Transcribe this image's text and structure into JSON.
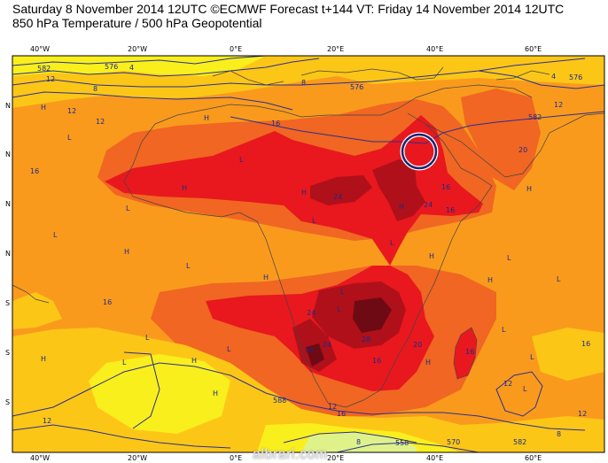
{
  "header": {
    "line1": "Saturday 8 November 2014 12UTC ©ECMWF Forecast t+144 VT: Friday 14 November 2014 12UTC",
    "line2": "850 hPa Temperature / 500 hPa Geopotential"
  },
  "axes": {
    "lon_labels": [
      "40°W",
      "20°W",
      "0°E",
      "20°E",
      "40°E",
      "60°E"
    ],
    "lat_labels": [
      "N",
      "N",
      "N",
      "N",
      "S",
      "S",
      "S"
    ]
  },
  "contour_labels": [
    "582",
    "576",
    "4",
    "8",
    "12",
    "12",
    "12",
    "8",
    "576",
    "582",
    "4",
    "576",
    "12",
    "16",
    "16",
    "24",
    "24",
    "16",
    "20",
    "24",
    "28",
    "16",
    "20",
    "24",
    "16",
    "16",
    "12",
    "16",
    "20",
    "12",
    "588",
    "12",
    "8",
    "558",
    "570",
    "582",
    "8",
    "16",
    "12",
    "16"
  ],
  "pressure_marks": [
    "H",
    "L",
    "H",
    "L",
    "L",
    "H",
    "H",
    "L",
    "H",
    "L",
    "H",
    "L",
    "H",
    "L",
    "H",
    "L",
    "H",
    "L",
    "H",
    "L",
    "H",
    "L",
    "L",
    "H",
    "L",
    "L",
    "H",
    "L",
    "H",
    "L",
    "L"
  ],
  "watermark": "albrari.com",
  "colors": {
    "t8": "#f9ef1c",
    "t12": "#fcc617",
    "t16": "#f99a1d",
    "t20": "#f06622",
    "t24": "#e8181e",
    "t28": "#b0101a",
    "t32": "#6e0a14",
    "contour": "#2b2f8f",
    "ring": "#1b2470",
    "land_line": "#444444"
  }
}
